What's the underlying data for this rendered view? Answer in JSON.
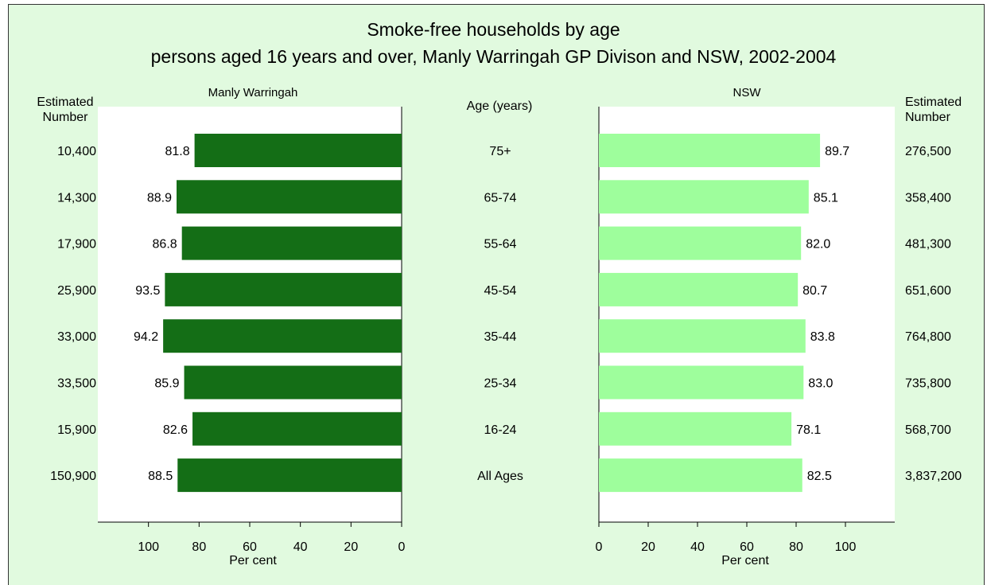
{
  "chart_data": {
    "type": "bar",
    "title": "Smoke-free households by age",
    "subtitle": "persons aged 16 years and over, Manly Warringah GP Divison and NSW, 2002-2004",
    "category_axis_label": "Age (years)",
    "categories": [
      "75+",
      "65-74",
      "55-64",
      "45-54",
      "35-44",
      "25-34",
      "16-24",
      "All Ages"
    ],
    "xlabel": "Per cent",
    "estimated_number_label": "Estimated Number",
    "xlim": [
      0,
      120
    ],
    "xticks": [
      0,
      20,
      40,
      60,
      80,
      100
    ],
    "series": [
      {
        "name": "Manly Warringah",
        "color": "#146e16",
        "values": [
          81.8,
          88.9,
          86.8,
          93.5,
          94.2,
          85.9,
          82.6,
          88.5
        ],
        "value_labels": [
          "81.8",
          "88.9",
          "86.8",
          "93.5",
          "94.2",
          "85.9",
          "82.6",
          "88.5"
        ],
        "estimated_number": [
          "10,400",
          "14,300",
          "17,900",
          "25,900",
          "33,000",
          "33,500",
          "15,900",
          "150,900"
        ]
      },
      {
        "name": "NSW",
        "color": "#9efe9c",
        "values": [
          89.7,
          85.1,
          82.0,
          80.7,
          83.8,
          83.0,
          78.1,
          82.5
        ],
        "value_labels": [
          "89.7",
          "85.1",
          "82.0",
          "80.7",
          "83.8",
          "83.0",
          "78.1",
          "82.5"
        ],
        "estimated_number": [
          "276,500",
          "358,400",
          "481,300",
          "651,600",
          "764,800",
          "735,800",
          "568,700",
          "3,837,200"
        ]
      }
    ]
  }
}
